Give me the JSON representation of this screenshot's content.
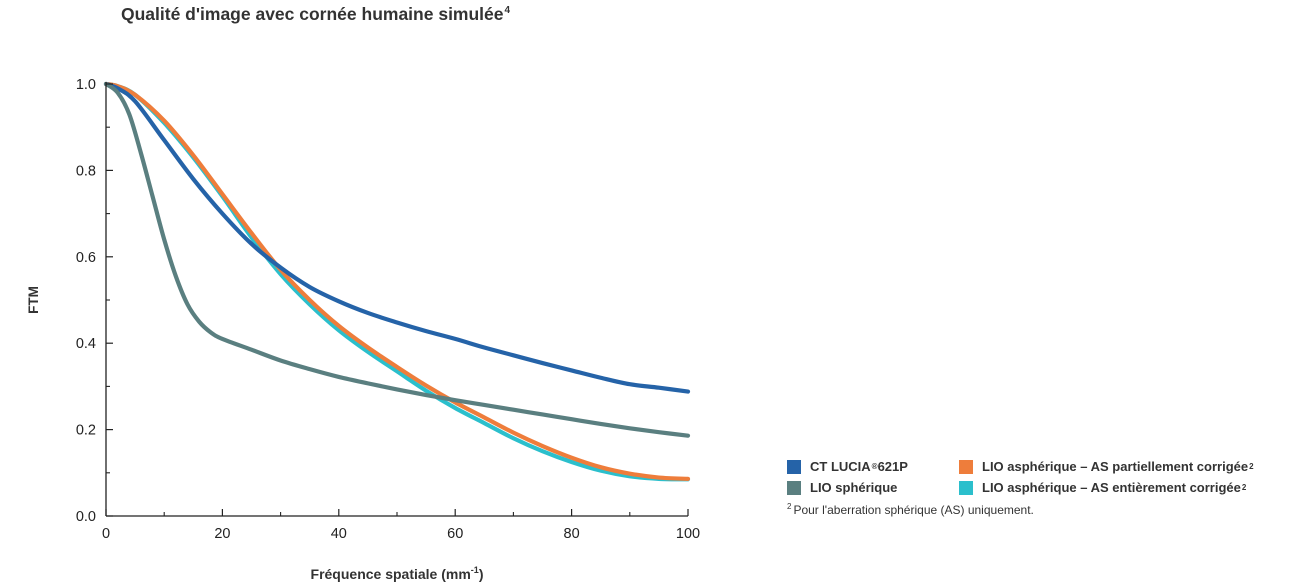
{
  "title": {
    "text": "Qualité d'image avec cornée humaine simulée",
    "sup": "4"
  },
  "colors": {
    "ct_lucia": "#2563a8",
    "spherique": "#5a7f80",
    "partiel": "#ee7d3b",
    "entier": "#2bbfcc",
    "axis": "#222222"
  },
  "legend": {
    "items": [
      {
        "label": "CT LUCIA",
        "reg": "®",
        "suffix": " 621P",
        "color": "#2563a8"
      },
      {
        "label": "LIO asphérique – AS partiellement corrigée",
        "sup": "2",
        "color": "#ee7d3b"
      },
      {
        "label": "LIO sphérique",
        "color": "#5a7f80"
      },
      {
        "label": "LIO asphérique – AS entièrement corrigée",
        "sup": "2",
        "color": "#2bbfcc"
      }
    ],
    "footnote": {
      "sup": "2",
      "text": "Pour l'aberration sphérique (AS) uniquement."
    }
  },
  "chart_data": {
    "type": "line",
    "title": "Qualité d'image avec cornée humaine simulée",
    "xlabel": "Fréquence spatiale (mm-1)",
    "xlabel_main": "Fréquence spatiale (mm",
    "xlabel_sup": "-1",
    "xlabel_end": ")",
    "ylabel": "FTM",
    "xlim": [
      0,
      100
    ],
    "ylim": [
      0,
      1
    ],
    "xticks": [
      0,
      20,
      40,
      60,
      80,
      100
    ],
    "xtick_labels": [
      "0",
      "20",
      "40",
      "60",
      "80",
      "100"
    ],
    "yticks": [
      0,
      0.2,
      0.4,
      0.6,
      0.8,
      1.0
    ],
    "ytick_labels": [
      "0.0",
      "0.2",
      "0.4",
      "0.6",
      "0.8",
      "1.0"
    ],
    "grid": false,
    "legend_position": "bottom-right",
    "series": [
      {
        "name": "LIO asphérique – AS entièrement corrigée",
        "color": "#2bbfcc",
        "x": [
          0,
          2,
          5,
          10,
          15,
          20,
          25,
          30,
          35,
          40,
          45,
          50,
          55,
          60,
          65,
          70,
          75,
          80,
          85,
          90,
          95,
          100
        ],
        "y": [
          1.0,
          0.995,
          0.975,
          0.91,
          0.83,
          0.74,
          0.645,
          0.56,
          0.49,
          0.43,
          0.38,
          0.335,
          0.29,
          0.25,
          0.215,
          0.18,
          0.15,
          0.125,
          0.105,
          0.092,
          0.086,
          0.085
        ]
      },
      {
        "name": "LIO asphérique – AS partiellement corrigée",
        "color": "#ee7d3b",
        "x": [
          0,
          2,
          5,
          10,
          15,
          20,
          25,
          30,
          35,
          40,
          45,
          50,
          55,
          60,
          65,
          70,
          75,
          80,
          85,
          90,
          95,
          100
        ],
        "y": [
          1.0,
          0.995,
          0.975,
          0.915,
          0.835,
          0.745,
          0.655,
          0.57,
          0.5,
          0.44,
          0.39,
          0.345,
          0.302,
          0.263,
          0.228,
          0.193,
          0.162,
          0.135,
          0.113,
          0.098,
          0.089,
          0.086
        ]
      },
      {
        "name": "CT LUCIA® 621P",
        "color": "#2563a8",
        "x": [
          0,
          2,
          5,
          10,
          15,
          20,
          25,
          30,
          35,
          40,
          45,
          50,
          55,
          60,
          65,
          70,
          75,
          80,
          85,
          90,
          95,
          100
        ],
        "y": [
          1.0,
          0.99,
          0.96,
          0.87,
          0.78,
          0.7,
          0.63,
          0.575,
          0.53,
          0.497,
          0.47,
          0.448,
          0.428,
          0.41,
          0.39,
          0.372,
          0.354,
          0.337,
          0.32,
          0.305,
          0.297,
          0.288
        ]
      },
      {
        "name": "LIO sphérique",
        "color": "#5a7f80",
        "x": [
          0,
          2,
          4,
          6,
          8,
          10,
          12,
          14,
          16,
          18,
          20,
          25,
          30,
          35,
          40,
          45,
          50,
          55,
          60,
          65,
          70,
          75,
          80,
          85,
          90,
          95,
          100
        ],
        "y": [
          1.0,
          0.98,
          0.93,
          0.84,
          0.74,
          0.64,
          0.555,
          0.49,
          0.45,
          0.425,
          0.41,
          0.385,
          0.36,
          0.34,
          0.322,
          0.307,
          0.293,
          0.28,
          0.268,
          0.257,
          0.246,
          0.235,
          0.224,
          0.213,
          0.203,
          0.194,
          0.186
        ]
      }
    ]
  }
}
